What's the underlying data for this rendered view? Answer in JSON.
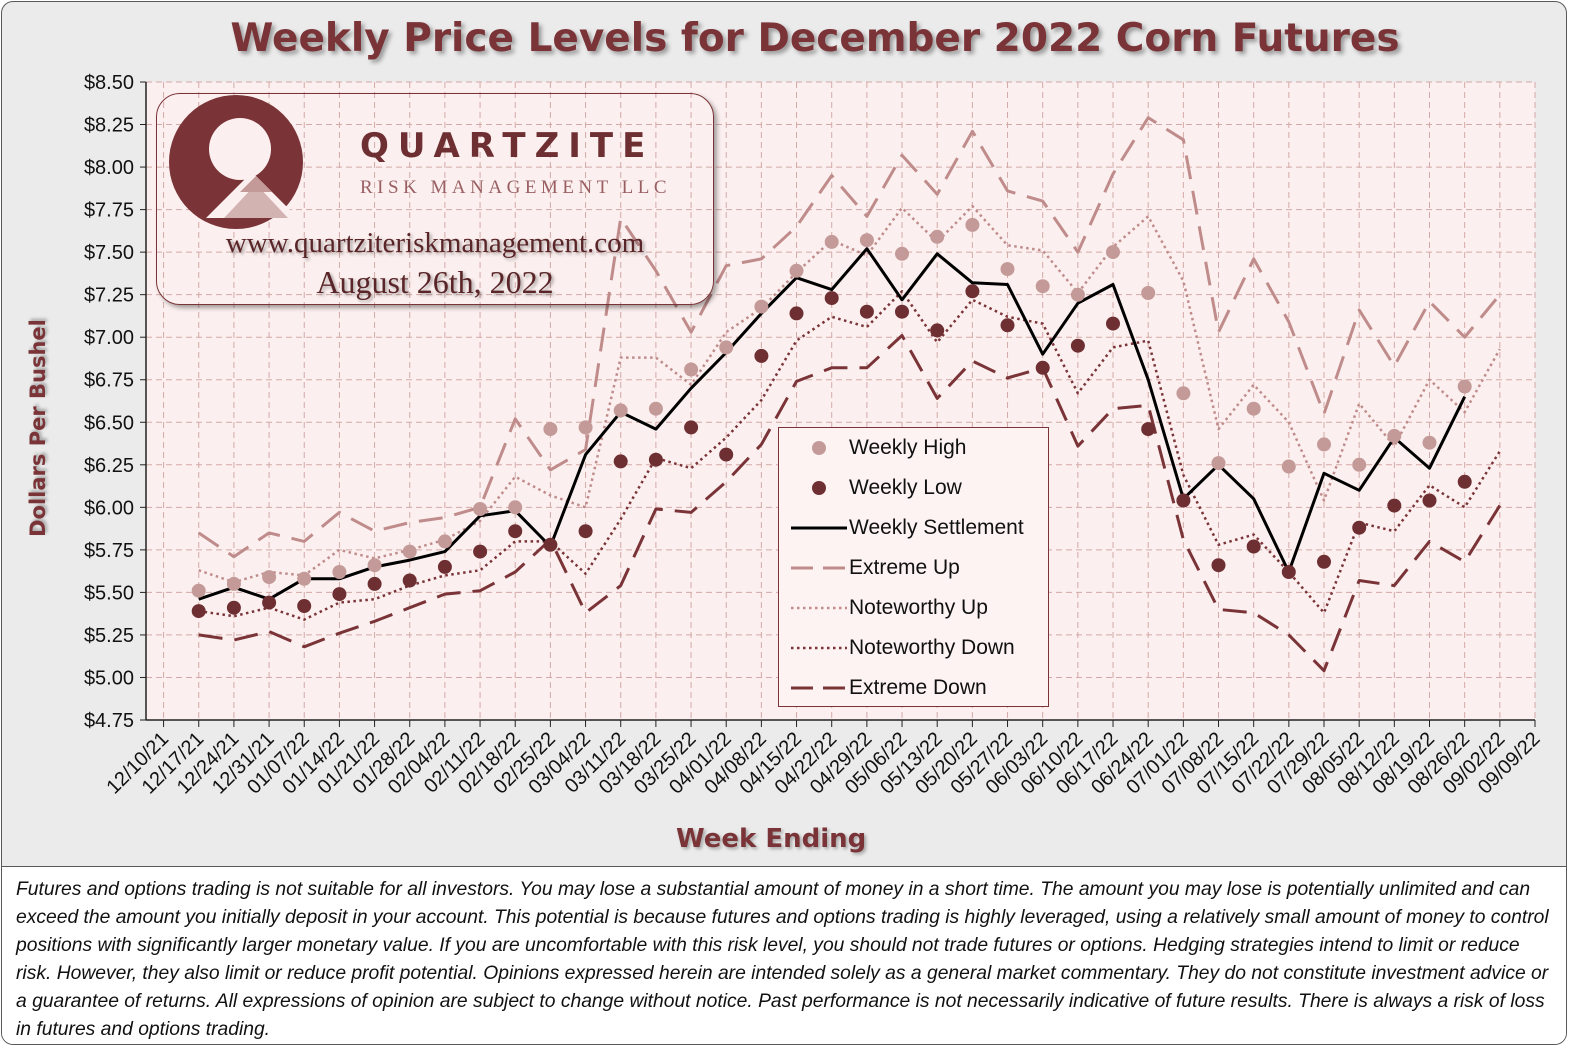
{
  "title": "Weekly Price Levels for December 2022 Corn Futures",
  "logo": {
    "brand": "QUARTZITE",
    "subtitle": "RISK MANAGEMENT LLC",
    "website": "www.quartziteriskmanagement.com",
    "date": "August 26th, 2022"
  },
  "colors": {
    "high": "#c49a98",
    "low": "#6e2f33",
    "settlement": "#000000",
    "extreme_up": "#bf8c8b",
    "noteworthy_up": "#bf8c8b",
    "noteworthy_down": "#7a3438",
    "extreme_down": "#7a3438",
    "plot_bg": "#fbf0ef",
    "grid": "#d4a9a7"
  },
  "chart_data": {
    "type": "line",
    "title": "Weekly Price Levels for December 2022 Corn Futures",
    "xlabel": "Week Ending",
    "ylabel": "Dollars Per Bushel",
    "ylim": [
      4.75,
      8.5
    ],
    "y_ticks": [
      "$4.75",
      "$5.00",
      "$5.25",
      "$5.50",
      "$5.75",
      "$6.00",
      "$6.25",
      "$6.50",
      "$6.75",
      "$7.00",
      "$7.25",
      "$7.50",
      "$7.75",
      "$8.00",
      "$8.25",
      "$8.50"
    ],
    "grid": true,
    "categories": [
      "12/10/21",
      "12/17/21",
      "12/24/21",
      "12/31/21",
      "01/07/22",
      "01/14/22",
      "01/21/22",
      "01/28/22",
      "02/04/22",
      "02/11/22",
      "02/18/22",
      "02/25/22",
      "03/04/22",
      "03/11/22",
      "03/18/22",
      "03/25/22",
      "04/01/22",
      "04/08/22",
      "04/15/22",
      "04/22/22",
      "04/29/22",
      "05/06/22",
      "05/13/22",
      "05/20/22",
      "05/27/22",
      "06/03/22",
      "06/10/22",
      "06/17/22",
      "06/24/22",
      "07/01/22",
      "07/08/22",
      "07/15/22",
      "07/22/22",
      "07/29/22",
      "08/05/22",
      "08/12/22",
      "08/19/22",
      "08/26/22",
      "09/02/22",
      "09/09/22"
    ],
    "series": [
      {
        "name": "Weekly High",
        "style": "marker-light",
        "values": [
          null,
          5.51,
          5.55,
          5.59,
          5.58,
          5.62,
          5.66,
          5.74,
          5.8,
          5.99,
          6.0,
          6.46,
          6.47,
          6.57,
          6.58,
          6.81,
          6.94,
          7.18,
          7.39,
          7.56,
          7.57,
          7.49,
          7.59,
          7.66,
          7.4,
          7.3,
          7.25,
          7.5,
          7.26,
          6.67,
          6.26,
          6.58,
          6.24,
          6.37,
          6.25,
          6.42,
          6.38,
          6.71,
          null,
          null
        ]
      },
      {
        "name": "Weekly Low",
        "style": "marker-dark",
        "values": [
          null,
          5.39,
          5.41,
          5.44,
          5.42,
          5.49,
          5.55,
          5.57,
          5.65,
          5.74,
          5.86,
          5.78,
          5.86,
          6.27,
          6.28,
          6.47,
          6.31,
          6.89,
          7.14,
          7.23,
          7.15,
          7.15,
          7.04,
          7.27,
          7.07,
          6.82,
          6.95,
          7.08,
          6.46,
          6.04,
          5.66,
          5.77,
          5.62,
          5.68,
          5.88,
          6.01,
          6.04,
          6.15,
          null,
          null
        ]
      },
      {
        "name": "Weekly Settlement",
        "style": "solid",
        "values": [
          null,
          5.46,
          5.53,
          5.46,
          5.58,
          5.58,
          5.65,
          5.69,
          5.74,
          5.95,
          5.98,
          5.77,
          6.31,
          6.56,
          6.46,
          6.7,
          6.91,
          7.14,
          7.35,
          7.28,
          7.52,
          7.22,
          7.49,
          7.32,
          7.31,
          6.9,
          7.2,
          7.31,
          6.75,
          6.05,
          6.25,
          6.05,
          5.62,
          6.2,
          6.1,
          6.41,
          6.23,
          6.65,
          null,
          null
        ]
      },
      {
        "name": "Extreme Up",
        "style": "long-dash-light",
        "values": [
          null,
          5.85,
          5.71,
          5.85,
          5.8,
          5.97,
          5.86,
          5.91,
          5.94,
          6.0,
          6.52,
          6.22,
          6.34,
          7.7,
          7.39,
          7.03,
          7.42,
          7.46,
          7.65,
          7.95,
          7.71,
          8.07,
          7.84,
          8.21,
          7.86,
          7.8,
          7.5,
          7.96,
          8.29,
          8.16,
          7.03,
          7.46,
          7.09,
          6.55,
          7.16,
          6.83,
          7.21,
          7.0,
          7.25,
          null
        ]
      },
      {
        "name": "Noteworthy Up",
        "style": "dotted-light",
        "values": [
          null,
          5.63,
          5.56,
          5.62,
          5.6,
          5.75,
          5.7,
          5.75,
          5.81,
          5.92,
          6.18,
          6.07,
          6.0,
          6.88,
          6.88,
          6.72,
          7.03,
          7.17,
          7.38,
          7.57,
          7.48,
          7.76,
          7.56,
          7.77,
          7.54,
          7.51,
          7.26,
          7.53,
          7.71,
          7.33,
          6.46,
          6.72,
          6.5,
          6.04,
          6.61,
          6.36,
          6.75,
          6.56,
          6.93,
          null
        ]
      },
      {
        "name": "Noteworthy Down",
        "style": "dotted-dark",
        "values": [
          null,
          5.39,
          5.36,
          5.41,
          5.34,
          5.44,
          5.46,
          5.54,
          5.6,
          5.63,
          5.8,
          5.8,
          5.61,
          5.93,
          6.29,
          6.23,
          6.41,
          6.63,
          6.98,
          7.12,
          7.06,
          7.27,
          6.97,
          7.22,
          7.12,
          7.08,
          6.67,
          6.94,
          6.98,
          6.19,
          5.78,
          5.84,
          5.62,
          5.38,
          5.91,
          5.86,
          6.13,
          6.0,
          6.33,
          null
        ]
      },
      {
        "name": "Extreme Down",
        "style": "long-dash-dark",
        "values": [
          null,
          5.25,
          5.22,
          5.27,
          5.18,
          5.26,
          5.33,
          5.41,
          5.49,
          5.51,
          5.62,
          5.81,
          5.38,
          5.54,
          5.99,
          5.97,
          6.15,
          6.37,
          6.74,
          6.82,
          6.82,
          7.01,
          6.64,
          6.86,
          6.76,
          6.82,
          6.36,
          6.58,
          6.6,
          5.81,
          5.4,
          5.38,
          5.25,
          5.04,
          5.57,
          5.54,
          5.8,
          5.68,
          6.01,
          null
        ]
      }
    ],
    "legend": [
      "Weekly High",
      "Weekly Low",
      "Weekly Settlement",
      "Extreme Up",
      "Noteworthy Up",
      "Noteworthy Down",
      "Extreme Down"
    ]
  },
  "disclaimer": "Futures and options trading is not suitable for all investors. You may lose a substantial amount of money in a short time. The amount you may lose is potentially unlimited and can exceed the amount you initially deposit in your account. This potential is because futures and options trading is highly leveraged, using a relatively small amount of money to control positions with significantly larger monetary value. If you are uncomfortable with this risk level, you should not trade futures or options. Hedging strategies intend to limit or reduce risk. However, they also limit or reduce profit potential. Opinions expressed herein are intended solely as a general market commentary. They do not constitute investment advice or a guarantee of returns. All expressions of opinion are subject to change without notice. Past performance is not necessarily indicative of future results. There is always a risk of loss in futures and options trading."
}
